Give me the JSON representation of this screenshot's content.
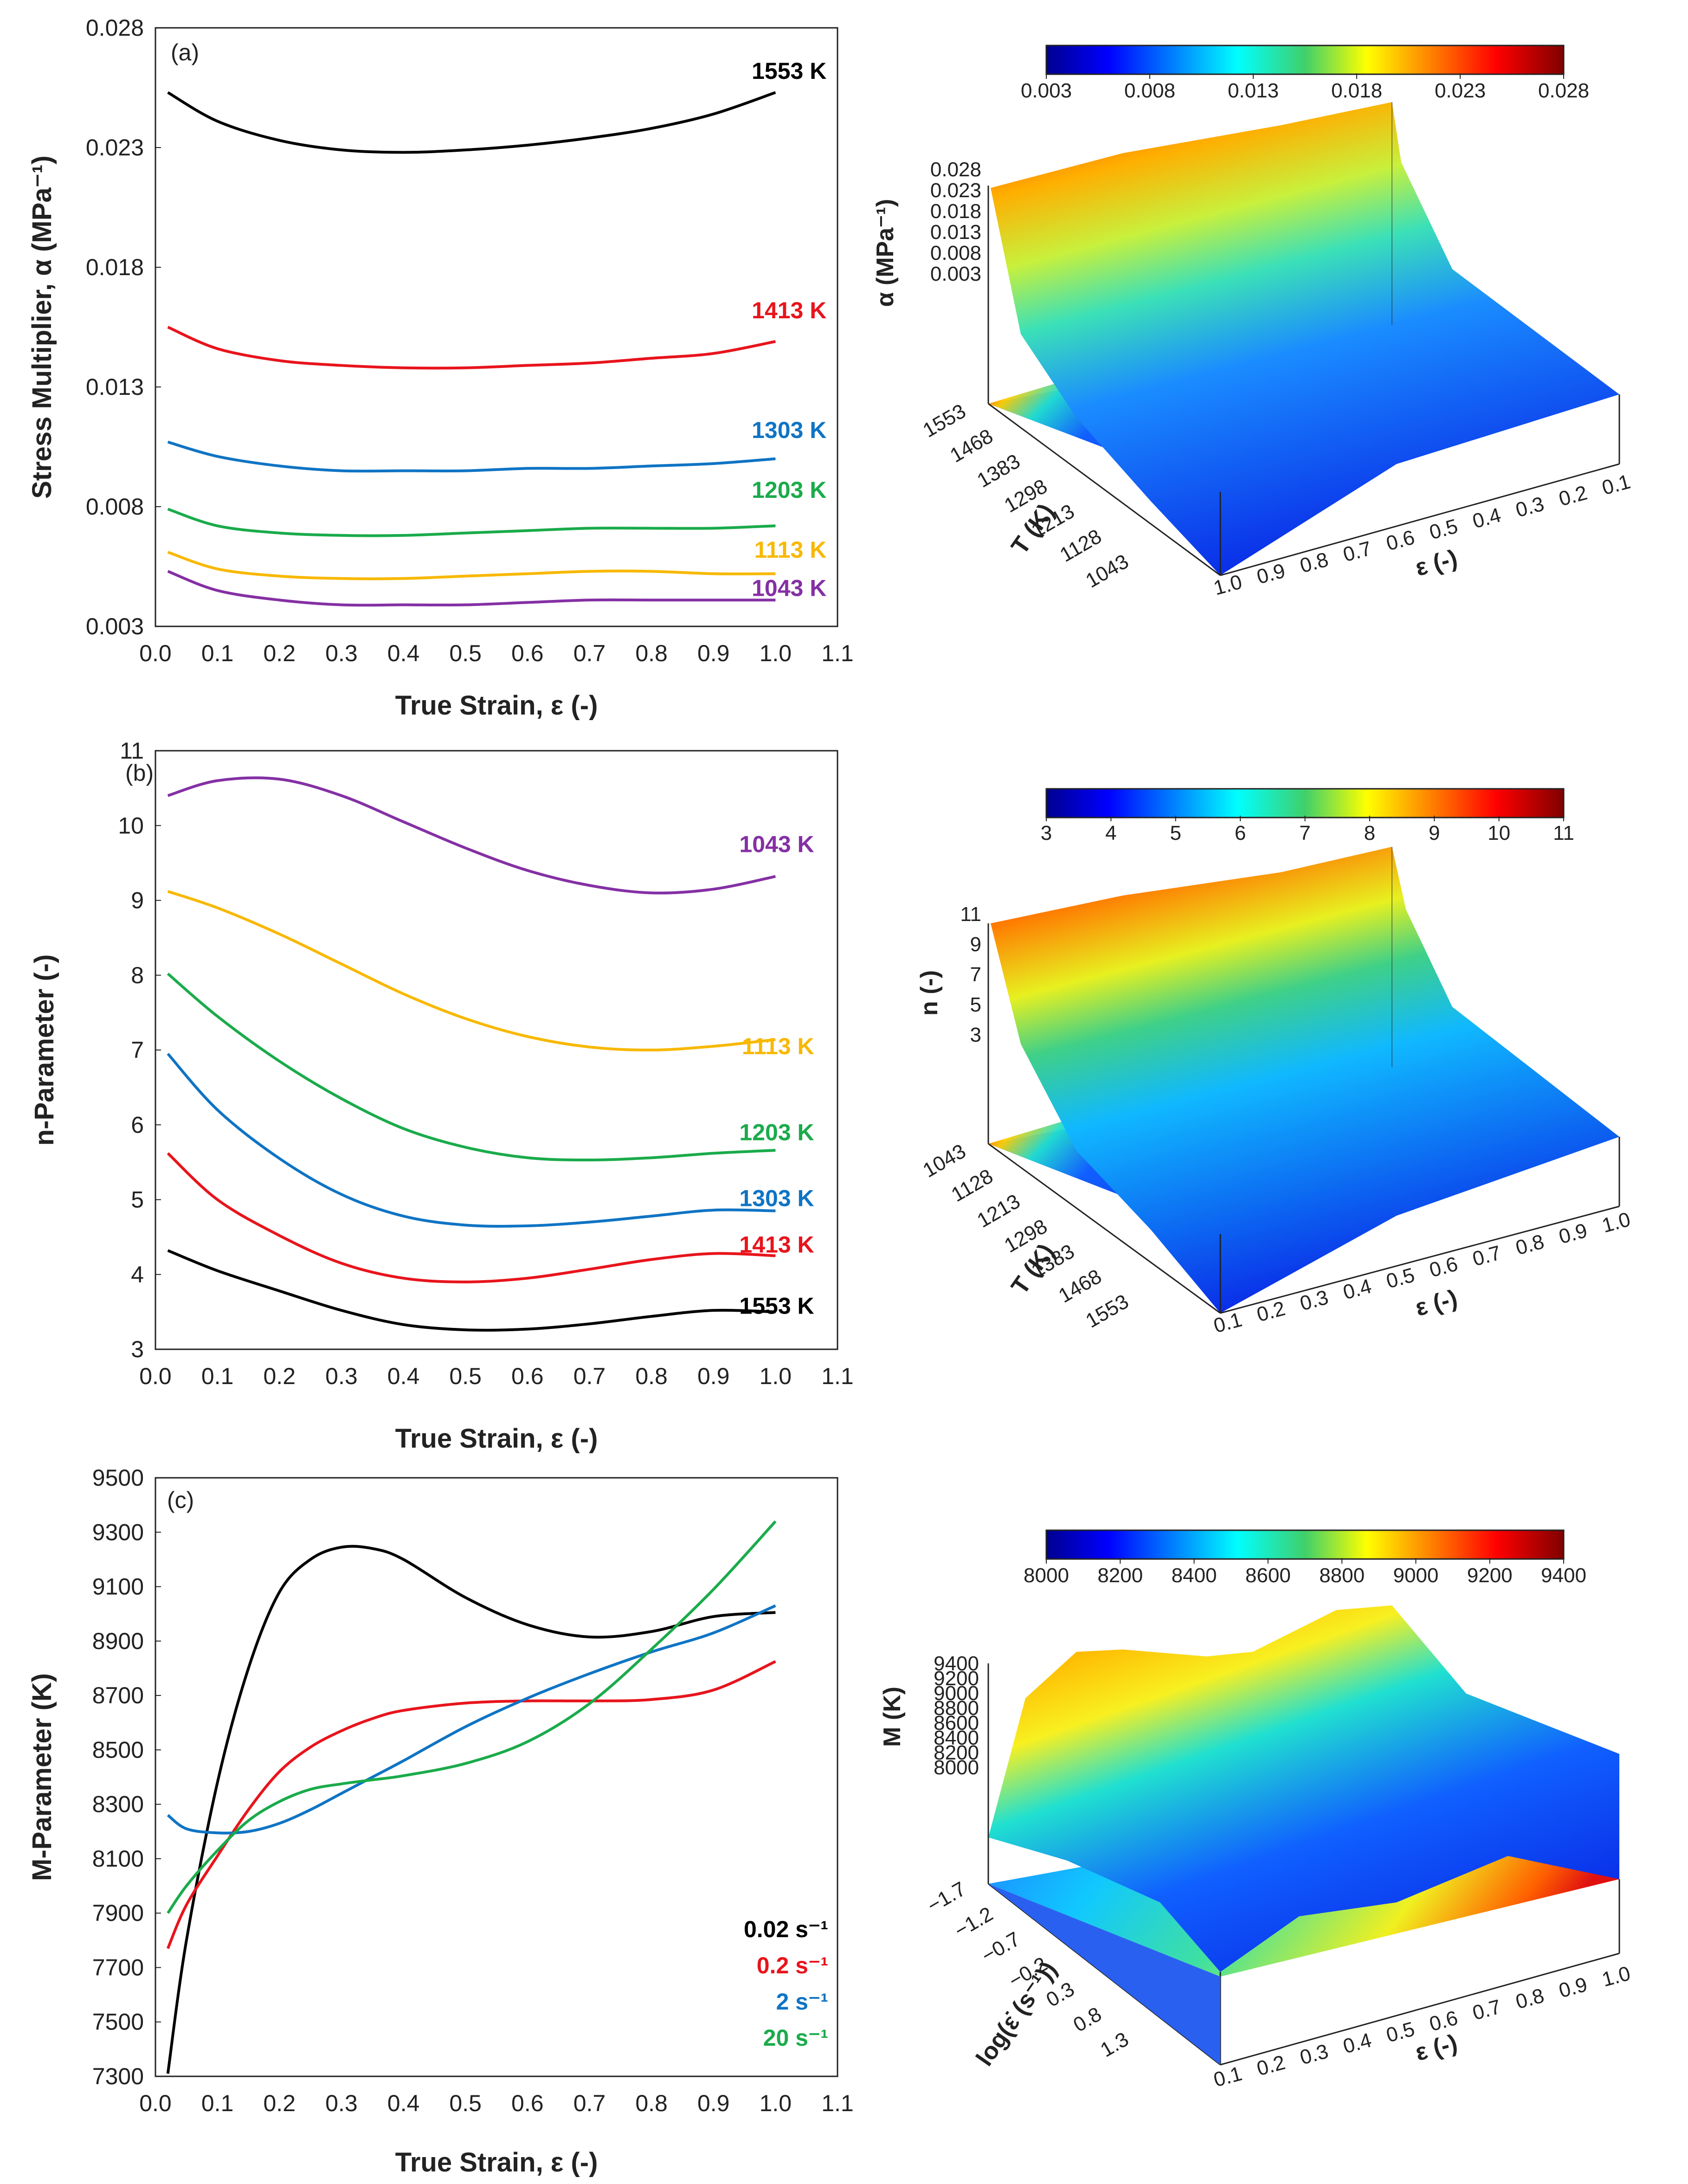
{
  "chart_data": [
    {
      "type": "line",
      "panel": "(a)",
      "xlabel": "True Strain, ε (-)",
      "ylabel": "Stress Multiplier, α (MPa⁻¹)",
      "x_ticks": [
        "0.0",
        "0.1",
        "0.2",
        "0.3",
        "0.4",
        "0.5",
        "0.6",
        "0.7",
        "0.8",
        "0.9",
        "1.0",
        "1.1"
      ],
      "y_ticks": [
        "0.003",
        "0.008",
        "0.013",
        "0.018",
        "0.023",
        "0.028"
      ],
      "xlim": [
        0,
        1.1
      ],
      "ylim": [
        0.003,
        0.028
      ],
      "series": [
        {
          "name": "1553 K",
          "color": "#000000",
          "x": [
            0.02,
            0.1,
            0.2,
            0.3,
            0.4,
            0.5,
            0.6,
            0.7,
            0.8,
            0.9,
            1.0
          ],
          "values": [
            0.0253,
            0.0241,
            0.0233,
            0.0229,
            0.0228,
            0.0229,
            0.0231,
            0.0234,
            0.0238,
            0.0244,
            0.0253
          ]
        },
        {
          "name": "1413 K",
          "color": "#e8141c",
          "x": [
            0.02,
            0.1,
            0.2,
            0.3,
            0.4,
            0.5,
            0.6,
            0.7,
            0.8,
            0.9,
            1.0
          ],
          "values": [
            0.0155,
            0.0146,
            0.0141,
            0.0139,
            0.0138,
            0.0138,
            0.0139,
            0.014,
            0.0142,
            0.0144,
            0.0149
          ]
        },
        {
          "name": "1303 K",
          "color": "#0f74c4",
          "x": [
            0.02,
            0.1,
            0.2,
            0.3,
            0.4,
            0.5,
            0.6,
            0.7,
            0.8,
            0.9,
            1.0
          ],
          "values": [
            0.0107,
            0.0101,
            0.0097,
            0.0095,
            0.0095,
            0.0095,
            0.0096,
            0.0096,
            0.0097,
            0.0098,
            0.01
          ]
        },
        {
          "name": "1203 K",
          "color": "#1aab4b",
          "x": [
            0.02,
            0.1,
            0.2,
            0.3,
            0.4,
            0.5,
            0.6,
            0.7,
            0.8,
            0.9,
            1.0
          ],
          "values": [
            0.0079,
            0.0072,
            0.0069,
            0.0068,
            0.0068,
            0.0069,
            0.007,
            0.0071,
            0.0071,
            0.0071,
            0.0072
          ]
        },
        {
          "name": "1113 K",
          "color": "#f8b800",
          "x": [
            0.02,
            0.1,
            0.2,
            0.3,
            0.4,
            0.5,
            0.6,
            0.7,
            0.8,
            0.9,
            1.0
          ],
          "values": [
            0.0061,
            0.0054,
            0.0051,
            0.005,
            0.005,
            0.0051,
            0.0052,
            0.0053,
            0.0053,
            0.0052,
            0.0052
          ]
        },
        {
          "name": "1043 K",
          "color": "#8430a4",
          "x": [
            0.02,
            0.1,
            0.2,
            0.3,
            0.4,
            0.5,
            0.6,
            0.7,
            0.8,
            0.9,
            1.0
          ],
          "values": [
            0.0053,
            0.0045,
            0.0041,
            0.0039,
            0.0039,
            0.0039,
            0.004,
            0.0041,
            0.0041,
            0.0041,
            0.0041
          ]
        }
      ]
    },
    {
      "type": "line",
      "panel": "(b)",
      "xlabel": "True Strain, ε (-)",
      "ylabel": "n-Parameter (-)",
      "x_ticks": [
        "0.0",
        "0.1",
        "0.2",
        "0.3",
        "0.4",
        "0.5",
        "0.6",
        "0.7",
        "0.8",
        "0.9",
        "1.0",
        "1.1"
      ],
      "y_ticks": [
        "3",
        "4",
        "5",
        "6",
        "7",
        "8",
        "9",
        "10",
        "11"
      ],
      "xlim": [
        0,
        1.1
      ],
      "ylim": [
        3,
        11
      ],
      "series": [
        {
          "name": "1043 K",
          "color": "#8430a4",
          "x": [
            0.02,
            0.1,
            0.2,
            0.3,
            0.4,
            0.5,
            0.6,
            0.7,
            0.8,
            0.9,
            1.0
          ],
          "values": [
            10.4,
            10.6,
            10.62,
            10.4,
            10.05,
            9.7,
            9.4,
            9.2,
            9.1,
            9.15,
            9.32
          ]
        },
        {
          "name": "1113 K",
          "color": "#f8b800",
          "x": [
            0.02,
            0.1,
            0.2,
            0.3,
            0.4,
            0.5,
            0.6,
            0.7,
            0.8,
            0.9,
            1.0
          ],
          "values": [
            9.12,
            8.9,
            8.55,
            8.15,
            7.75,
            7.42,
            7.18,
            7.04,
            7.0,
            7.05,
            7.14
          ]
        },
        {
          "name": "1203 K",
          "color": "#1aab4b",
          "x": [
            0.02,
            0.1,
            0.2,
            0.3,
            0.4,
            0.5,
            0.6,
            0.7,
            0.8,
            0.9,
            1.0
          ],
          "values": [
            8.02,
            7.45,
            6.85,
            6.35,
            5.95,
            5.7,
            5.56,
            5.53,
            5.56,
            5.62,
            5.66
          ]
        },
        {
          "name": "1303 K",
          "color": "#0f74c4",
          "x": [
            0.02,
            0.1,
            0.2,
            0.3,
            0.4,
            0.5,
            0.6,
            0.7,
            0.8,
            0.9,
            1.0
          ],
          "values": [
            6.95,
            6.2,
            5.55,
            5.07,
            4.78,
            4.66,
            4.65,
            4.7,
            4.78,
            4.86,
            4.85
          ]
        },
        {
          "name": "1413 K",
          "color": "#e8141c",
          "x": [
            0.02,
            0.1,
            0.2,
            0.3,
            0.4,
            0.5,
            0.6,
            0.7,
            0.8,
            0.9,
            1.0
          ],
          "values": [
            5.62,
            5.0,
            4.52,
            4.15,
            3.95,
            3.9,
            3.95,
            4.07,
            4.2,
            4.28,
            4.25
          ]
        },
        {
          "name": "1553 K",
          "color": "#000000",
          "x": [
            0.02,
            0.1,
            0.2,
            0.3,
            0.4,
            0.5,
            0.6,
            0.7,
            0.8,
            0.9,
            1.0
          ],
          "values": [
            4.32,
            4.05,
            3.78,
            3.52,
            3.33,
            3.26,
            3.27,
            3.34,
            3.44,
            3.52,
            3.5
          ]
        }
      ]
    },
    {
      "type": "line",
      "panel": "(c)",
      "xlabel": "True Strain, ε (-)",
      "ylabel": "M-Parameter (K)",
      "x_ticks": [
        "0.0",
        "0.1",
        "0.2",
        "0.3",
        "0.4",
        "0.5",
        "0.6",
        "0.7",
        "0.8",
        "0.9",
        "1.0",
        "1.1"
      ],
      "y_ticks": [
        "7300",
        "7500",
        "7700",
        "7900",
        "8100",
        "8300",
        "8500",
        "8700",
        "8900",
        "9100",
        "9300",
        "9500"
      ],
      "xlim": [
        0,
        1.1
      ],
      "ylim": [
        7300,
        9500
      ],
      "series": [
        {
          "name": "0.02 s⁻¹",
          "color": "#000000",
          "x": [
            0.02,
            0.05,
            0.1,
            0.15,
            0.2,
            0.25,
            0.3,
            0.35,
            0.4,
            0.5,
            0.6,
            0.7,
            0.8,
            0.9,
            1.0
          ],
          "values": [
            7310,
            7800,
            8380,
            8800,
            9080,
            9200,
            9245,
            9240,
            9200,
            9060,
            8960,
            8915,
            8935,
            8990,
            9005
          ]
        },
        {
          "name": "0.2 s⁻¹",
          "color": "#e8141c",
          "x": [
            0.02,
            0.05,
            0.1,
            0.15,
            0.2,
            0.25,
            0.3,
            0.35,
            0.4,
            0.5,
            0.6,
            0.7,
            0.8,
            0.9,
            1.0
          ],
          "values": [
            7770,
            7930,
            8110,
            8280,
            8420,
            8510,
            8570,
            8615,
            8645,
            8672,
            8680,
            8680,
            8685,
            8720,
            8825
          ]
        },
        {
          "name": "2 s⁻¹",
          "color": "#0f74c4",
          "x": [
            0.02,
            0.05,
            0.1,
            0.15,
            0.2,
            0.25,
            0.3,
            0.35,
            0.4,
            0.5,
            0.6,
            0.7,
            0.8,
            0.9,
            1.0
          ],
          "values": [
            8260,
            8210,
            8195,
            8200,
            8230,
            8280,
            8340,
            8400,
            8460,
            8585,
            8690,
            8780,
            8860,
            8930,
            9030
          ]
        },
        {
          "name": "20 s⁻¹",
          "color": "#1aab4b",
          "x": [
            0.02,
            0.05,
            0.1,
            0.15,
            0.2,
            0.25,
            0.3,
            0.35,
            0.4,
            0.5,
            0.6,
            0.7,
            0.8,
            0.9,
            1.0
          ],
          "values": [
            7900,
            8000,
            8130,
            8240,
            8310,
            8355,
            8375,
            8390,
            8405,
            8450,
            8530,
            8670,
            8870,
            9090,
            9340
          ]
        }
      ]
    },
    {
      "type": "surface3d",
      "colorbar_ticks": [
        "0.003",
        "0.008",
        "0.013",
        "0.018",
        "0.023",
        "0.028"
      ],
      "z_label": "α (MPa⁻¹)",
      "z_ticks": [
        "0.028",
        "0.023",
        "0.018",
        "0.013",
        "0.008",
        "0.003"
      ],
      "y_label": "T (K)",
      "y_ticks": [
        "1553",
        "1468",
        "1383",
        "1298",
        "1213",
        "1128",
        "1043"
      ],
      "x_label": "ε (-)",
      "x_ticks": [
        "1.0",
        "0.9",
        "0.8",
        "0.7",
        "0.6",
        "0.5",
        "0.4",
        "0.3",
        "0.2",
        "0.1"
      ]
    },
    {
      "type": "surface3d",
      "colorbar_ticks": [
        "3",
        "4",
        "5",
        "6",
        "7",
        "8",
        "9",
        "10",
        "11"
      ],
      "z_label": "n (-)",
      "z_ticks": [
        "11",
        "9",
        "7",
        "5",
        "3"
      ],
      "y_label": "T (K)",
      "y_ticks": [
        "1043",
        "1128",
        "1213",
        "1298",
        "1383",
        "1468",
        "1553"
      ],
      "x_label": "ε (-)",
      "x_ticks": [
        "0.1",
        "0.2",
        "0.3",
        "0.4",
        "0.5",
        "0.6",
        "0.7",
        "0.8",
        "0.9",
        "1.0"
      ]
    },
    {
      "type": "surface3d",
      "colorbar_ticks": [
        "8000",
        "8200",
        "8400",
        "8600",
        "8800",
        "9000",
        "9200",
        "9400"
      ],
      "z_label": "M (K)",
      "z_ticks": [
        "9400",
        "9200",
        "9000",
        "8800",
        "8600",
        "8400",
        "8200",
        "8000"
      ],
      "y_label": "log(ε̇ (s⁻¹))",
      "y_ticks": [
        "−1.7",
        "−1.2",
        "−0.7",
        "−0.2",
        "0.3",
        "0.8",
        "1.3"
      ],
      "x_label": "ε (-)",
      "x_ticks": [
        "0.1",
        "0.2",
        "0.3",
        "0.4",
        "0.5",
        "0.6",
        "0.7",
        "0.8",
        "0.9",
        "1.0"
      ]
    }
  ]
}
